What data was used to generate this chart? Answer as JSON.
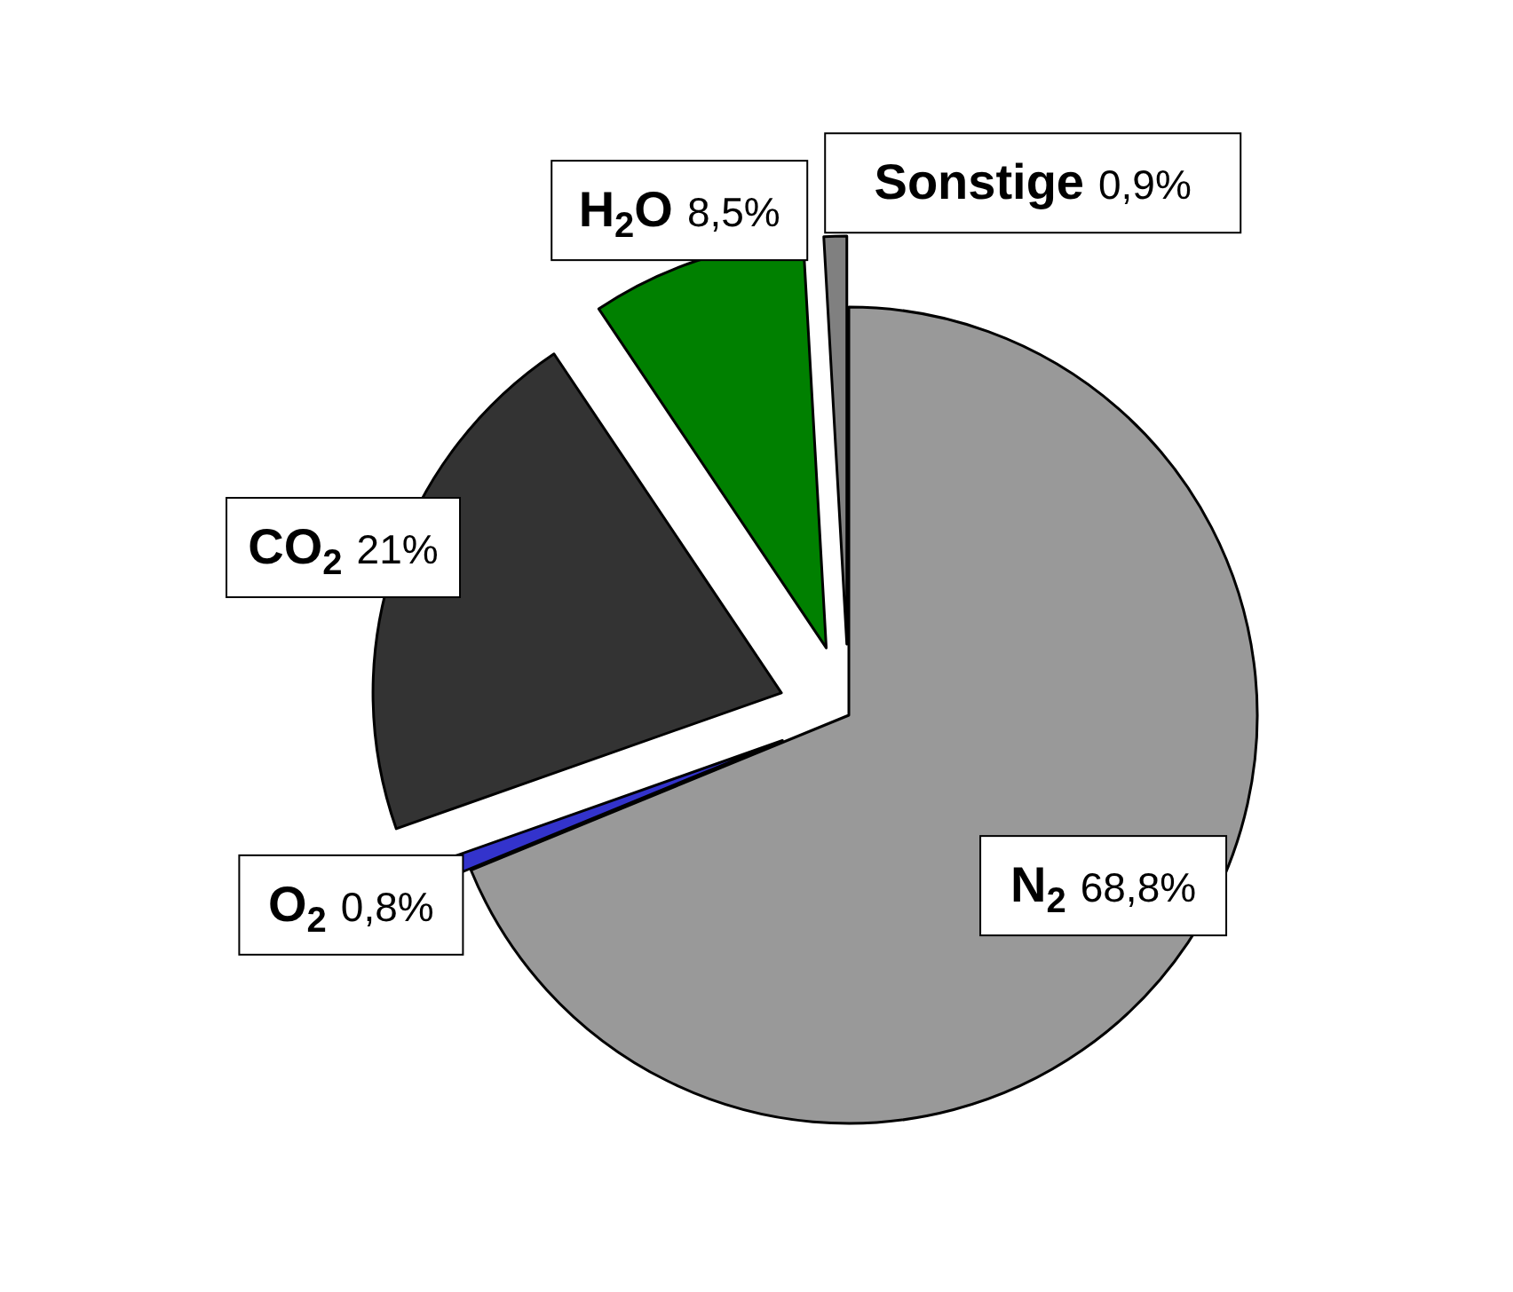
{
  "chart_data": {
    "type": "pie",
    "categories": [
      "N$_{2}$",
      "O$_{2}$",
      "CO$_{2}$",
      "H$_{2}$O",
      "Sonstige"
    ],
    "values": [
      68.8,
      0.8,
      21,
      8.5,
      0.9
    ],
    "value_labels": [
      "68,8%",
      "0,8%",
      "21%",
      "8,5%",
      "0,9%"
    ],
    "colors": [
      "#999999",
      "#3333cc",
      "#333333",
      "#008000",
      "#808080"
    ]
  }
}
